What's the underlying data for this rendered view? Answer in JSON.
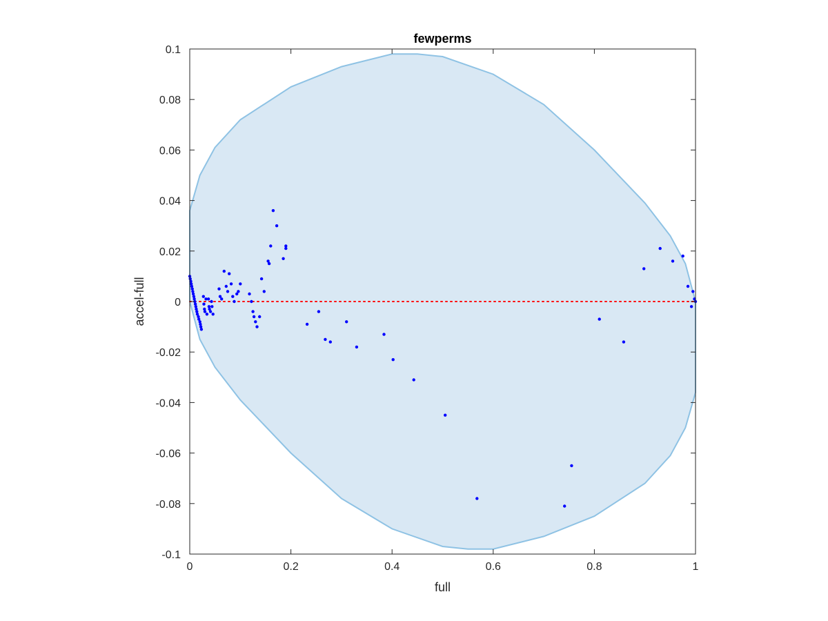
{
  "chart_data": {
    "type": "scatter",
    "title": "fewperms",
    "xlabel": "full",
    "ylabel": "accel-full",
    "xlim": [
      0,
      1
    ],
    "ylim": [
      -0.1,
      0.1
    ],
    "x_ticks": [
      "0",
      "0.2",
      "0.4",
      "0.6",
      "0.8",
      "1"
    ],
    "y_ticks": [
      "0.1",
      "0.08",
      "0.06",
      "0.04",
      "0.02",
      "0",
      "-0.02",
      "-0.04",
      "-0.06",
      "-0.08",
      "-0.1"
    ],
    "grid": false,
    "reference_line": {
      "y": 0,
      "style": "dotted",
      "color": "#ff0000"
    },
    "region": {
      "description": "filled envelope",
      "fill": "#d9e8f4",
      "stroke": "#8ec2e4",
      "upper": [
        [
          0,
          0.036
        ],
        [
          0.02,
          0.05
        ],
        [
          0.05,
          0.061
        ],
        [
          0.1,
          0.072
        ],
        [
          0.2,
          0.085
        ],
        [
          0.3,
          0.093
        ],
        [
          0.4,
          0.098
        ],
        [
          0.45,
          0.098
        ],
        [
          0.5,
          0.097
        ],
        [
          0.6,
          0.09
        ],
        [
          0.7,
          0.078
        ],
        [
          0.8,
          0.06
        ],
        [
          0.9,
          0.039
        ],
        [
          0.95,
          0.026
        ],
        [
          0.98,
          0.015
        ],
        [
          1.0,
          0.0
        ]
      ],
      "lower": [
        [
          1.0,
          0.0
        ],
        [
          1.0,
          -0.036
        ],
        [
          0.98,
          -0.05
        ],
        [
          0.95,
          -0.061
        ],
        [
          0.9,
          -0.072
        ],
        [
          0.8,
          -0.085
        ],
        [
          0.7,
          -0.093
        ],
        [
          0.6,
          -0.098
        ],
        [
          0.55,
          -0.098
        ],
        [
          0.5,
          -0.097
        ],
        [
          0.4,
          -0.09
        ],
        [
          0.3,
          -0.078
        ],
        [
          0.2,
          -0.06
        ],
        [
          0.1,
          -0.039
        ],
        [
          0.05,
          -0.026
        ],
        [
          0.02,
          -0.015
        ],
        [
          0.0,
          0.0
        ]
      ]
    },
    "series": [
      {
        "color": "#0000ff",
        "points": [
          [
            0.0,
            0.01
          ],
          [
            0.001,
            0.009
          ],
          [
            0.002,
            0.008
          ],
          [
            0.003,
            0.007
          ],
          [
            0.004,
            0.006
          ],
          [
            0.005,
            0.005
          ],
          [
            0.006,
            0.004
          ],
          [
            0.007,
            0.003
          ],
          [
            0.008,
            0.002
          ],
          [
            0.009,
            0.001
          ],
          [
            0.01,
            0.0
          ],
          [
            0.011,
            -0.001
          ],
          [
            0.012,
            -0.002
          ],
          [
            0.013,
            -0.003
          ],
          [
            0.014,
            -0.004
          ],
          [
            0.015,
            -0.005
          ],
          [
            0.017,
            -0.006
          ],
          [
            0.018,
            -0.007
          ],
          [
            0.02,
            -0.008
          ],
          [
            0.021,
            -0.009
          ],
          [
            0.022,
            -0.01
          ],
          [
            0.023,
            -0.011
          ],
          [
            0.027,
            0.002
          ],
          [
            0.028,
            -0.001
          ],
          [
            0.029,
            -0.003
          ],
          [
            0.03,
            -0.004
          ],
          [
            0.032,
            0.001
          ],
          [
            0.034,
            -0.005
          ],
          [
            0.037,
            0.001
          ],
          [
            0.038,
            -0.002
          ],
          [
            0.039,
            -0.003
          ],
          [
            0.041,
            -0.004
          ],
          [
            0.043,
            0.0
          ],
          [
            0.044,
            -0.002
          ],
          [
            0.046,
            -0.005
          ],
          [
            0.058,
            0.005
          ],
          [
            0.06,
            0.002
          ],
          [
            0.063,
            0.001
          ],
          [
            0.068,
            0.012
          ],
          [
            0.072,
            0.006
          ],
          [
            0.075,
            0.004
          ],
          [
            0.078,
            0.011
          ],
          [
            0.082,
            0.007
          ],
          [
            0.085,
            0.002
          ],
          [
            0.088,
            0.0
          ],
          [
            0.093,
            0.003
          ],
          [
            0.096,
            0.004
          ],
          [
            0.1,
            0.007
          ],
          [
            0.118,
            0.003
          ],
          [
            0.122,
            0.0
          ],
          [
            0.125,
            -0.004
          ],
          [
            0.127,
            -0.006
          ],
          [
            0.13,
            -0.008
          ],
          [
            0.133,
            -0.01
          ],
          [
            0.138,
            -0.006
          ],
          [
            0.142,
            0.009
          ],
          [
            0.147,
            0.004
          ],
          [
            0.155,
            0.016
          ],
          [
            0.157,
            0.015
          ],
          [
            0.16,
            0.022
          ],
          [
            0.165,
            0.036
          ],
          [
            0.172,
            0.03
          ],
          [
            0.185,
            0.017
          ],
          [
            0.19,
            0.022
          ],
          [
            0.19,
            0.021
          ],
          [
            0.232,
            -0.009
          ],
          [
            0.255,
            -0.004
          ],
          [
            0.268,
            -0.015
          ],
          [
            0.278,
            -0.016
          ],
          [
            0.31,
            -0.008
          ],
          [
            0.33,
            -0.018
          ],
          [
            0.384,
            -0.013
          ],
          [
            0.402,
            -0.023
          ],
          [
            0.443,
            -0.031
          ],
          [
            0.505,
            -0.045
          ],
          [
            0.568,
            -0.078
          ],
          [
            0.741,
            -0.081
          ],
          [
            0.755,
            -0.065
          ],
          [
            0.81,
            -0.007
          ],
          [
            0.858,
            -0.016
          ],
          [
            0.898,
            0.013
          ],
          [
            0.93,
            0.021
          ],
          [
            0.955,
            0.016
          ],
          [
            0.975,
            0.018
          ],
          [
            0.985,
            0.006
          ],
          [
            0.992,
            -0.002
          ],
          [
            0.995,
            0.004
          ],
          [
            0.998,
            0.001
          ],
          [
            1.0,
            0.0
          ]
        ]
      }
    ]
  }
}
